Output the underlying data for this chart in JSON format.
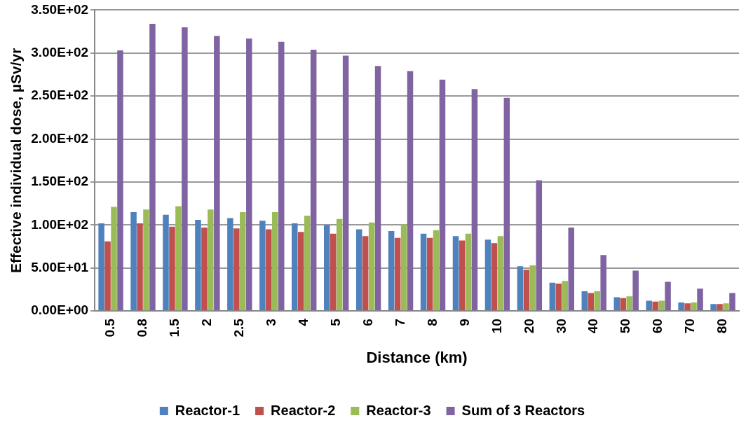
{
  "chart_data": {
    "type": "bar",
    "xlabel": "Distance (km)",
    "ylabel": "Effective individual dose, µSv/yr",
    "categories": [
      "0.5",
      "0.8",
      "1.5",
      "2",
      "2.5",
      "3",
      "4",
      "5",
      "6",
      "7",
      "8",
      "9",
      "10",
      "20",
      "30",
      "40",
      "50",
      "60",
      "70",
      "80"
    ],
    "series": [
      {
        "name": "Reactor-1",
        "color": "#4f81bd",
        "values": [
          102,
          115,
          112,
          106,
          108,
          105,
          102,
          100,
          95,
          93,
          90,
          87,
          83,
          52,
          33,
          23,
          16,
          12,
          10,
          8
        ]
      },
      {
        "name": "Reactor-2",
        "color": "#c0504d",
        "values": [
          81,
          102,
          98,
          97,
          96,
          95,
          92,
          90,
          87,
          85,
          85,
          82,
          79,
          48,
          32,
          21,
          15,
          11,
          9,
          8
        ]
      },
      {
        "name": "Reactor-3",
        "color": "#9bbb59",
        "values": [
          121,
          118,
          122,
          118,
          115,
          115,
          111,
          107,
          103,
          101,
          94,
          90,
          87,
          53,
          35,
          23,
          17,
          12,
          10,
          9
        ]
      },
      {
        "name": "Sum of 3 Reactors",
        "color": "#8064a2",
        "values": [
          303,
          334,
          330,
          320,
          317,
          313,
          304,
          297,
          285,
          279,
          269,
          258,
          248,
          152,
          97,
          65,
          47,
          34,
          26,
          21
        ]
      }
    ],
    "ylim": [
      0,
      350
    ],
    "yticks": [
      {
        "value": 0,
        "label": "0.00E+00"
      },
      {
        "value": 50,
        "label": "5.00E+01"
      },
      {
        "value": 100,
        "label": "1.00E+02"
      },
      {
        "value": 150,
        "label": "1.50E+02"
      },
      {
        "value": 200,
        "label": "2.00E+02"
      },
      {
        "value": 250,
        "label": "2.50E+02"
      },
      {
        "value": 300,
        "label": "3.00E+02"
      },
      {
        "value": 350,
        "label": "3.50E+02"
      }
    ],
    "grid": "y",
    "legend": "bottom"
  }
}
